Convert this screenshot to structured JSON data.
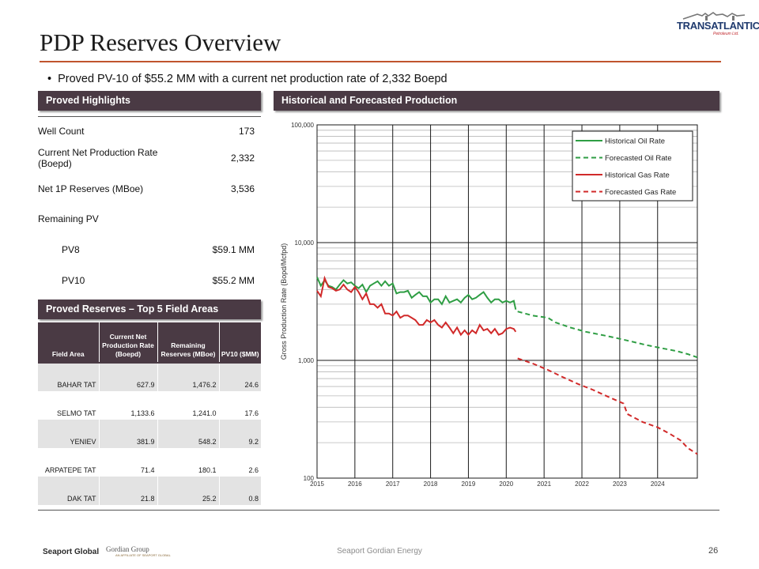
{
  "header": {
    "title": "PDP Reserves Overview",
    "logo_name": "TRANSATLANTIC",
    "logo_sub": "Petroleum Ltd."
  },
  "bullet": "Proved PV-10 of $55.2 MM with a current net production rate of 2,332 Boepd",
  "highlights": {
    "heading": "Proved Highlights",
    "rows": [
      {
        "label": "Well Count",
        "value": "173"
      },
      {
        "label": "Current Net Production Rate (Boepd)",
        "value": "2,332"
      },
      {
        "label": "Net 1P Reserves (MBoe)",
        "value": "3,536"
      },
      {
        "label": "Remaining PV",
        "value": ""
      },
      {
        "label": "PV8",
        "value": "$59.1 MM"
      },
      {
        "label": "PV10",
        "value": "$55.2 MM"
      }
    ]
  },
  "fields": {
    "heading": "Proved Reserves – Top 5 Field Areas",
    "columns": [
      "Field Area",
      "Current Net Production Rate (Boepd)",
      "Remaining Reserves (MBoe)",
      "PV10 ($MM)"
    ],
    "rows": [
      {
        "area": "BAHAR TAT",
        "rate": "627.9",
        "reserves": "1,476.2",
        "pv10": "24.6"
      },
      {
        "area": "SELMO TAT",
        "rate": "1,133.6",
        "reserves": "1,241.0",
        "pv10": "17.6"
      },
      {
        "area": "YENIEV",
        "rate": "381.9",
        "reserves": "548.2",
        "pv10": "9.2"
      },
      {
        "area": "ARPATEPE TAT",
        "rate": "71.4",
        "reserves": "180.1",
        "pv10": "2.6"
      },
      {
        "area": "DAK TAT",
        "rate": "21.8",
        "reserves": "25.2",
        "pv10": "0.8"
      }
    ]
  },
  "production": {
    "heading": "Historical and Forecasted Production"
  },
  "chart_data": {
    "type": "line",
    "title": "Historical and Forecasted Production",
    "xlabel": "",
    "ylabel": "Gross Production Rate (Bopd/Mcfpd)",
    "yscale": "log",
    "ylim": [
      100,
      100000
    ],
    "xlim": [
      2015,
      2025.05
    ],
    "yticks": [
      "100",
      "1,000",
      "10,000",
      "100,000"
    ],
    "ytick_values": [
      100,
      1000,
      10000,
      100000
    ],
    "xticks": [
      "2015",
      "2016",
      "2017",
      "2018",
      "2019",
      "2020",
      "2021",
      "2022",
      "2023",
      "2024"
    ],
    "xtick_values": [
      2015,
      2016,
      2017,
      2018,
      2019,
      2020,
      2021,
      2022,
      2023,
      2024
    ],
    "legend_position": "top-right",
    "series": [
      {
        "name": "Historical Oil Rate",
        "color": "#2f9e44",
        "dash": false,
        "points": [
          [
            2015.0,
            5100
          ],
          [
            2015.1,
            4300
          ],
          [
            2015.2,
            4800
          ],
          [
            2015.3,
            4300
          ],
          [
            2015.4,
            4200
          ],
          [
            2015.5,
            4000
          ],
          [
            2015.6,
            4400
          ],
          [
            2015.7,
            4800
          ],
          [
            2015.8,
            4500
          ],
          [
            2015.9,
            4600
          ],
          [
            2016.0,
            4300
          ],
          [
            2016.1,
            4100
          ],
          [
            2016.2,
            4400
          ],
          [
            2016.3,
            3800
          ],
          [
            2016.4,
            4300
          ],
          [
            2016.5,
            4500
          ],
          [
            2016.6,
            4700
          ],
          [
            2016.7,
            4300
          ],
          [
            2016.8,
            4700
          ],
          [
            2016.9,
            4300
          ],
          [
            2017.0,
            4500
          ],
          [
            2017.1,
            3700
          ],
          [
            2017.2,
            3800
          ],
          [
            2017.3,
            3800
          ],
          [
            2017.4,
            3900
          ],
          [
            2017.5,
            3400
          ],
          [
            2017.6,
            3600
          ],
          [
            2017.7,
            3800
          ],
          [
            2017.8,
            3500
          ],
          [
            2017.9,
            3500
          ],
          [
            2018.0,
            3100
          ],
          [
            2018.1,
            3300
          ],
          [
            2018.2,
            3300
          ],
          [
            2018.3,
            3000
          ],
          [
            2018.4,
            3500
          ],
          [
            2018.5,
            3100
          ],
          [
            2018.6,
            3200
          ],
          [
            2018.7,
            3300
          ],
          [
            2018.8,
            3100
          ],
          [
            2018.9,
            3400
          ],
          [
            2019.0,
            3600
          ],
          [
            2019.1,
            3300
          ],
          [
            2019.2,
            3400
          ],
          [
            2019.3,
            3600
          ],
          [
            2019.4,
            3800
          ],
          [
            2019.5,
            3400
          ],
          [
            2019.6,
            3100
          ],
          [
            2019.7,
            3300
          ],
          [
            2019.8,
            3300
          ],
          [
            2019.9,
            3100
          ],
          [
            2020.0,
            3200
          ],
          [
            2020.1,
            3100
          ],
          [
            2020.2,
            3200
          ],
          [
            2020.25,
            2700
          ]
        ]
      },
      {
        "name": "Forecasted Oil Rate",
        "color": "#2f9e44",
        "dash": true,
        "points": [
          [
            2020.3,
            2600
          ],
          [
            2020.7,
            2400
          ],
          [
            2021.1,
            2300
          ],
          [
            2021.3,
            2100
          ],
          [
            2021.7,
            1900
          ],
          [
            2022.1,
            1750
          ],
          [
            2022.5,
            1650
          ],
          [
            2022.9,
            1550
          ],
          [
            2023.3,
            1450
          ],
          [
            2023.7,
            1350
          ],
          [
            2024.1,
            1270
          ],
          [
            2024.5,
            1200
          ],
          [
            2024.8,
            1130
          ],
          [
            2025.05,
            1060
          ]
        ]
      },
      {
        "name": "Historical Gas Rate",
        "color": "#d12a2a",
        "dash": false,
        "points": [
          [
            2015.0,
            3900
          ],
          [
            2015.1,
            3500
          ],
          [
            2015.2,
            5000
          ],
          [
            2015.3,
            4200
          ],
          [
            2015.4,
            4100
          ],
          [
            2015.5,
            3900
          ],
          [
            2015.6,
            4000
          ],
          [
            2015.7,
            4400
          ],
          [
            2015.8,
            4000
          ],
          [
            2015.9,
            3800
          ],
          [
            2016.0,
            4200
          ],
          [
            2016.1,
            3800
          ],
          [
            2016.2,
            3300
          ],
          [
            2016.3,
            3700
          ],
          [
            2016.4,
            3000
          ],
          [
            2016.5,
            3000
          ],
          [
            2016.6,
            2800
          ],
          [
            2016.7,
            3000
          ],
          [
            2016.8,
            2500
          ],
          [
            2016.9,
            2500
          ],
          [
            2017.0,
            2400
          ],
          [
            2017.1,
            2600
          ],
          [
            2017.2,
            2300
          ],
          [
            2017.3,
            2400
          ],
          [
            2017.4,
            2400
          ],
          [
            2017.5,
            2300
          ],
          [
            2017.6,
            2200
          ],
          [
            2017.7,
            2000
          ],
          [
            2017.8,
            2000
          ],
          [
            2017.9,
            2200
          ],
          [
            2018.0,
            2100
          ],
          [
            2018.1,
            2200
          ],
          [
            2018.2,
            2000
          ],
          [
            2018.3,
            1900
          ],
          [
            2018.4,
            2100
          ],
          [
            2018.5,
            1900
          ],
          [
            2018.6,
            1700
          ],
          [
            2018.7,
            1900
          ],
          [
            2018.8,
            1650
          ],
          [
            2018.9,
            1800
          ],
          [
            2019.0,
            1650
          ],
          [
            2019.1,
            1800
          ],
          [
            2019.2,
            1700
          ],
          [
            2019.3,
            2000
          ],
          [
            2019.4,
            1800
          ],
          [
            2019.5,
            1850
          ],
          [
            2019.6,
            1700
          ],
          [
            2019.7,
            1850
          ],
          [
            2019.8,
            1650
          ],
          [
            2019.9,
            1700
          ],
          [
            2020.0,
            1850
          ],
          [
            2020.1,
            1900
          ],
          [
            2020.2,
            1850
          ],
          [
            2020.25,
            1750
          ]
        ]
      },
      {
        "name": "Forecasted Gas Rate",
        "color": "#d12a2a",
        "dash": true,
        "points": [
          [
            2020.3,
            1040
          ],
          [
            2020.7,
            940
          ],
          [
            2021.1,
            830
          ],
          [
            2021.5,
            720
          ],
          [
            2021.9,
            630
          ],
          [
            2022.3,
            560
          ],
          [
            2022.7,
            490
          ],
          [
            2023.1,
            430
          ],
          [
            2023.2,
            350
          ],
          [
            2023.6,
            300
          ],
          [
            2024.0,
            270
          ],
          [
            2024.3,
            240
          ],
          [
            2024.6,
            210
          ],
          [
            2024.8,
            180
          ],
          [
            2025.05,
            160
          ]
        ]
      }
    ]
  },
  "footer": {
    "center": "Seaport Gordian Energy",
    "page": "26",
    "logo_left": "Seaport Global",
    "logo_right": "Gordian Group",
    "logo_right_sub": "AN AFFILIATE OF SEAPORT GLOBAL"
  }
}
